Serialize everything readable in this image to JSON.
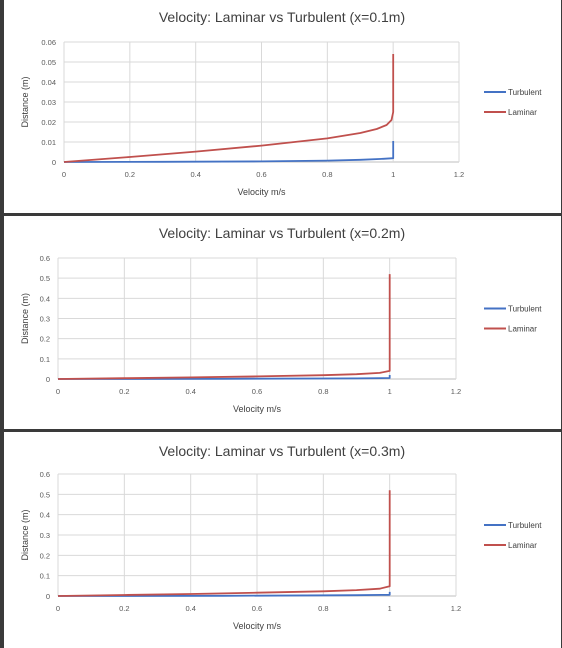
{
  "chart_data": [
    {
      "type": "line",
      "title": "Velocity: Laminar vs Turbulent (x=0.1m)",
      "xlabel": "Velocity m/s",
      "ylabel": "Distance (m)",
      "xlim": [
        0,
        1.2
      ],
      "ylim": [
        0,
        0.06
      ],
      "xticks": [
        "0",
        "0.2",
        "0.4",
        "0.6",
        "0.8",
        "1",
        "1.2"
      ],
      "yticks": [
        "0",
        "0.01",
        "0.02",
        "0.03",
        "0.04",
        "0.05",
        "0.06"
      ],
      "grid": true,
      "legend": "right",
      "series": [
        {
          "name": "Turbulent",
          "color": "#4472c4",
          "points": [
            [
              0,
              0
            ],
            [
              0.3,
              0.0001
            ],
            [
              0.6,
              0.0003
            ],
            [
              0.8,
              0.0007
            ],
            [
              0.9,
              0.0011
            ],
            [
              0.97,
              0.0016
            ],
            [
              1.0,
              0.0019
            ],
            [
              1.0,
              0.0105
            ]
          ]
        },
        {
          "name": "Laminar",
          "color": "#c0504d",
          "points": [
            [
              0,
              0
            ],
            [
              0.2,
              0.0025
            ],
            [
              0.4,
              0.0052
            ],
            [
              0.6,
              0.0082
            ],
            [
              0.8,
              0.0118
            ],
            [
              0.9,
              0.0145
            ],
            [
              0.95,
              0.0165
            ],
            [
              0.98,
              0.0185
            ],
            [
              0.995,
              0.021
            ],
            [
              1.0,
              0.025
            ],
            [
              1.0,
              0.054
            ]
          ]
        }
      ]
    },
    {
      "type": "line",
      "title": "Velocity: Laminar vs Turbulent (x=0.2m)",
      "xlabel": "Velocity m/s",
      "ylabel": "Distance (m)",
      "xlim": [
        0,
        1.2
      ],
      "ylim": [
        0,
        0.6
      ],
      "xticks": [
        "0",
        "0.2",
        "0.4",
        "0.6",
        "0.8",
        "1",
        "1.2"
      ],
      "yticks": [
        "0",
        "0.1",
        "0.2",
        "0.3",
        "0.4",
        "0.5",
        "0.6"
      ],
      "grid": true,
      "legend": "right",
      "series": [
        {
          "name": "Turbulent",
          "color": "#4472c4",
          "points": [
            [
              0,
              0
            ],
            [
              0.5,
              0.001
            ],
            [
              0.9,
              0.003
            ],
            [
              1.0,
              0.005
            ],
            [
              1.0,
              0.02
            ]
          ]
        },
        {
          "name": "Laminar",
          "color": "#c0504d",
          "points": [
            [
              0,
              0
            ],
            [
              0.2,
              0.004
            ],
            [
              0.4,
              0.008
            ],
            [
              0.6,
              0.013
            ],
            [
              0.8,
              0.019
            ],
            [
              0.9,
              0.024
            ],
            [
              0.97,
              0.03
            ],
            [
              1.0,
              0.04
            ],
            [
              1.0,
              0.52
            ]
          ]
        }
      ]
    },
    {
      "type": "line",
      "title": "Velocity: Laminar vs Turbulent (x=0.3m)",
      "xlabel": "Velocity m/s",
      "ylabel": "Distance (m)",
      "xlim": [
        0,
        1.2
      ],
      "ylim": [
        0,
        0.6
      ],
      "xticks": [
        "0",
        "0.2",
        "0.4",
        "0.6",
        "0.8",
        "1",
        "1.2"
      ],
      "yticks": [
        "0",
        "0.1",
        "0.2",
        "0.3",
        "0.4",
        "0.5",
        "0.6"
      ],
      "grid": true,
      "legend": "right",
      "series": [
        {
          "name": "Turbulent",
          "color": "#4472c4",
          "points": [
            [
              0,
              0
            ],
            [
              0.5,
              0.001
            ],
            [
              0.9,
              0.004
            ],
            [
              1.0,
              0.006
            ],
            [
              1.0,
              0.02
            ]
          ]
        },
        {
          "name": "Laminar",
          "color": "#c0504d",
          "points": [
            [
              0,
              0
            ],
            [
              0.2,
              0.005
            ],
            [
              0.4,
              0.01
            ],
            [
              0.6,
              0.016
            ],
            [
              0.8,
              0.023
            ],
            [
              0.9,
              0.029
            ],
            [
              0.97,
              0.036
            ],
            [
              1.0,
              0.048
            ],
            [
              1.0,
              0.52
            ]
          ]
        }
      ]
    }
  ]
}
